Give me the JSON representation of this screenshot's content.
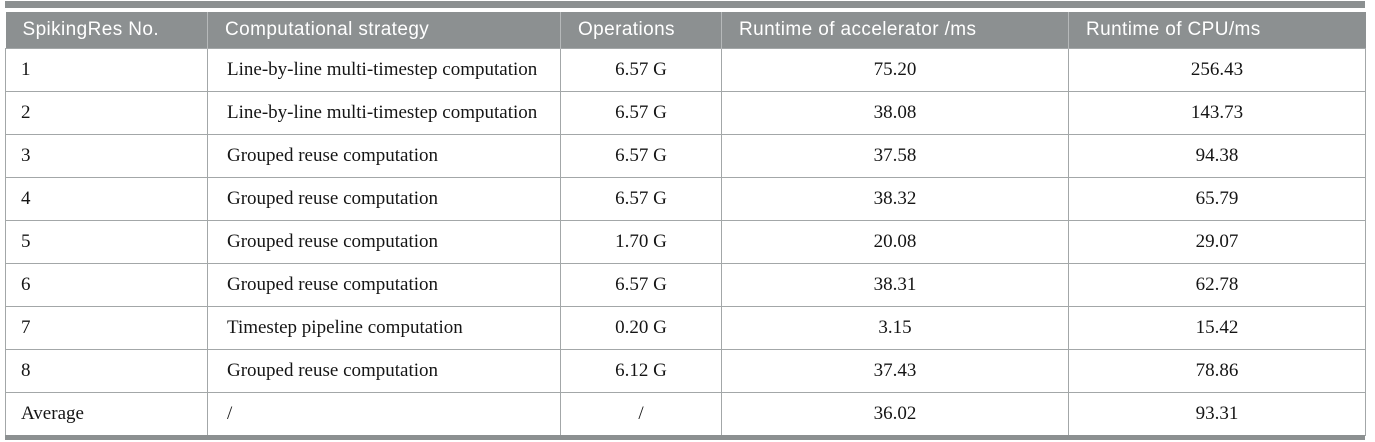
{
  "table": {
    "headers": [
      "SpikingRes No.",
      "Computational strategy",
      "Operations",
      "Runtime of accelerator /ms",
      "Runtime of CPU/ms"
    ],
    "rows": [
      [
        "1",
        "Line-by-line multi-timestep computation",
        "6.57 G",
        "75.20",
        "256.43"
      ],
      [
        "2",
        "Line-by-line multi-timestep computation",
        "6.57 G",
        "38.08",
        "143.73"
      ],
      [
        "3",
        "Grouped reuse computation",
        "6.57 G",
        "37.58",
        "94.38"
      ],
      [
        "4",
        "Grouped reuse computation",
        "6.57 G",
        "38.32",
        "65.79"
      ],
      [
        "5",
        "Grouped reuse computation",
        "1.70 G",
        "20.08",
        "29.07"
      ],
      [
        "6",
        "Grouped reuse computation",
        "6.57 G",
        "38.31",
        "62.78"
      ],
      [
        "7",
        "Timestep pipeline computation",
        "0.20 G",
        "3.15",
        "15.42"
      ],
      [
        "8",
        "Grouped reuse computation",
        "6.12 G",
        "37.43",
        "78.86"
      ],
      [
        "Average",
        "/",
        "/",
        "36.02",
        "93.31"
      ]
    ],
    "not_applicable_symbol": "/"
  },
  "colors": {
    "header_background": "#8c9091",
    "accent_bar": "#8c9091",
    "header_text": "#ffffff",
    "body_text": "#151515",
    "grid_line": "#a3a7a8",
    "header_separator": "#b6b9ba",
    "page_background": "#ffffff"
  }
}
